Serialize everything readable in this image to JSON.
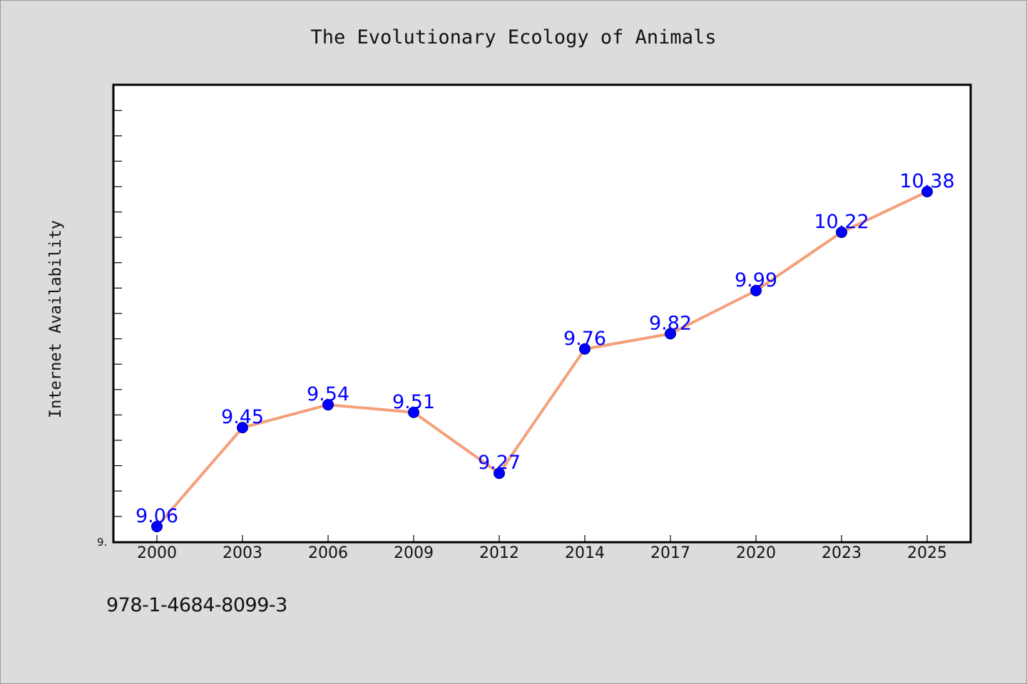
{
  "chart_data": {
    "type": "line",
    "title": "The Evolutionary Ecology of Animals",
    "xlabel": "",
    "ylabel": "Internet Availability",
    "categories": [
      "2000",
      "2003",
      "2006",
      "2009",
      "2012",
      "2014",
      "2017",
      "2020",
      "2023",
      "2025"
    ],
    "series": [
      {
        "values": [
          9.06,
          9.45,
          9.54,
          9.51,
          9.27,
          9.76,
          9.82,
          9.99,
          10.22,
          10.38
        ],
        "data_labels": [
          "9.06",
          "9.45",
          "9.54",
          "9.51",
          "9.27",
          "9.76",
          "9.82",
          "9.99",
          "10.22",
          "10.38"
        ],
        "line_color": "#f4a07a",
        "marker_color": "#0000ff"
      }
    ],
    "ylim": [
      9.0,
      10.8
    ],
    "y_tick_label": "9.",
    "grid": false,
    "legend": "none"
  },
  "footer": {
    "isbn": "978-1-4684-8099-3"
  }
}
